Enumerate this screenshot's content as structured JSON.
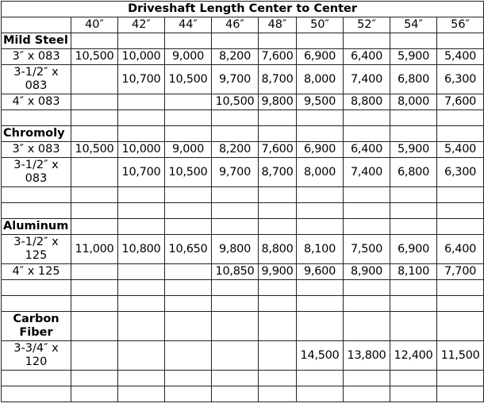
{
  "title": "Driveshaft Length Center to Center",
  "lengths": [
    "40″",
    "42″",
    "44″",
    "46″",
    "48″",
    "50″",
    "52″",
    "54″",
    "56″"
  ],
  "sections": [
    {
      "name": "Mild Steel",
      "rows": [
        {
          "size": "3″ x 083",
          "values": [
            "10,500",
            "10,000",
            "9,000",
            "8,200",
            "7,600",
            "6,900",
            "6,400",
            "5,900",
            "5,400"
          ]
        },
        {
          "size": "3-1/2″ x 083",
          "values": [
            "",
            "10,700",
            "10,500",
            "9,700",
            "8,700",
            "8,000",
            "7,400",
            "6,800",
            "6,300"
          ]
        },
        {
          "size": "4″ x 083",
          "values": [
            "",
            "",
            "",
            "10,500",
            "9,800",
            "9,500",
            "8,800",
            "8,000",
            "7,600"
          ]
        }
      ]
    },
    {
      "name": "Chromoly",
      "rows": [
        {
          "size": "3″ x 083",
          "values": [
            "10,500",
            "10,000",
            "9,000",
            "8,200",
            "7,600",
            "6,900",
            "6,400",
            "5,900",
            "5,400"
          ]
        },
        {
          "size": "3-1/2″ x 083",
          "values": [
            "",
            "10,700",
            "10,500",
            "9,700",
            "8,700",
            "8,000",
            "7,400",
            "6,800",
            "6,300"
          ]
        }
      ]
    },
    {
      "name": "Aluminum",
      "rows": [
        {
          "size": "3-1/2″ x 125",
          "values": [
            "11,000",
            "10,800",
            "10,650",
            "9,800",
            "8,800",
            "8,100",
            "7,500",
            "6,900",
            "6,400"
          ]
        },
        {
          "size": "4″ x 125",
          "values": [
            "",
            "",
            "",
            "10,850",
            "9,900",
            "9,600",
            "8,900",
            "8,100",
            "7,700"
          ]
        }
      ]
    },
    {
      "name": "Carbon Fiber",
      "rows": [
        {
          "size": "3-3/4″ x 120",
          "values": [
            "",
            "",
            "",
            "",
            "",
            "14,500",
            "13,800",
            "12,400",
            "11,500"
          ]
        }
      ]
    }
  ]
}
